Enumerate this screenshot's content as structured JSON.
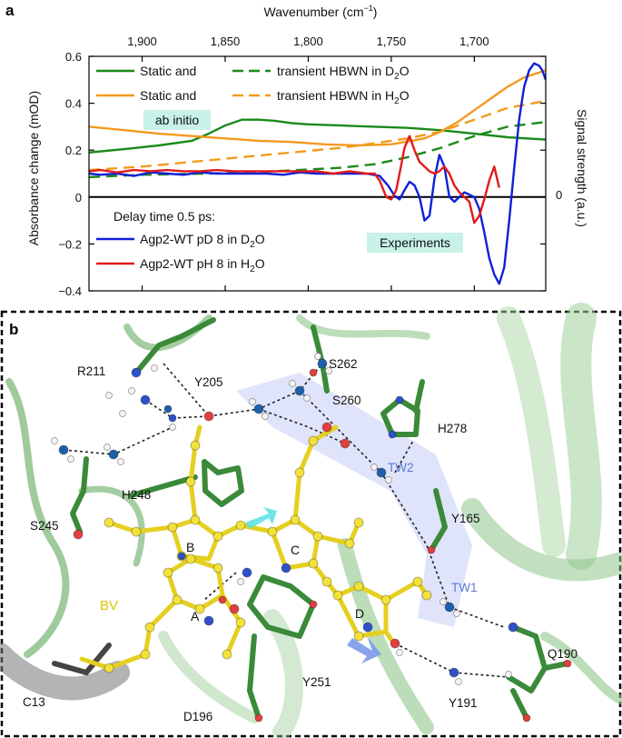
{
  "panel_a": {
    "letter": "a",
    "top_axis_label": "Wavenumber (cm",
    "top_axis_sup": "−1",
    "top_axis_close": ")",
    "y_left_label": "Absorbance change (mOD)",
    "y_right_label": "Signal strength (a.u.)",
    "right_zero_label": "0",
    "legend_top": [
      {
        "left": "Static and",
        "right": "transient HBWN in D",
        "sub": "2",
        "tail": "O",
        "color": "#1a8a1a"
      },
      {
        "left": "Static and",
        "right": "transient HBWN in H",
        "sub": "2",
        "tail": "O",
        "color": "#f39a1e"
      }
    ],
    "ab_initio_label": "ab initio",
    "experiments_label": "Experiments",
    "legend_bottom_title": "Delay time 0.5 ps:",
    "legend_bottom": [
      {
        "label": "Agp2-WT pD 8 in D",
        "sub": "2",
        "tail": "O",
        "color": "#1020d8"
      },
      {
        "label": "Agp2-WT pH 8 in H",
        "sub": "2",
        "tail": "O",
        "color": "#e41a1a"
      }
    ]
  },
  "chart_data": {
    "type": "line",
    "xlabel": "Wavenumber (cm−1)",
    "ylabel": "Absorbance change (mOD)",
    "y2label": "Signal strength (a.u.)",
    "xlim": [
      1932,
      1657
    ],
    "ylim": [
      -0.4,
      0.6
    ],
    "xticks": [
      1900,
      1850,
      1800,
      1750,
      1700
    ],
    "xtick_labels": [
      "1,900",
      "1,850",
      "1,800",
      "1,750",
      "1,700"
    ],
    "yticks": [
      -0.4,
      -0.2,
      0,
      0.2,
      0.4,
      0.6
    ],
    "ytick_labels": [
      "−0.4",
      "−0.2",
      "0",
      "0.2",
      "0.4",
      "0.6"
    ],
    "series": [
      {
        "name": "Static HBWN in D2O",
        "style": "solid",
        "color": "#1a8a1a",
        "x": [
          1932,
          1910,
          1890,
          1870,
          1860,
          1850,
          1840,
          1830,
          1820,
          1810,
          1800,
          1780,
          1760,
          1740,
          1720,
          1700,
          1680,
          1657
        ],
        "y": [
          0.19,
          0.205,
          0.22,
          0.24,
          0.27,
          0.305,
          0.33,
          0.33,
          0.325,
          0.315,
          0.31,
          0.305,
          0.3,
          0.295,
          0.285,
          0.27,
          0.255,
          0.245
        ]
      },
      {
        "name": "Transient HBWN in D2O",
        "style": "dashed",
        "color": "#1a8a1a",
        "x": [
          1932,
          1900,
          1860,
          1820,
          1780,
          1760,
          1740,
          1720,
          1700,
          1680,
          1657
        ],
        "y": [
          0.085,
          0.095,
          0.1,
          0.11,
          0.125,
          0.14,
          0.17,
          0.21,
          0.26,
          0.3,
          0.32
        ]
      },
      {
        "name": "Static HBWN in H2O",
        "style": "solid",
        "color": "#f39a1e",
        "x": [
          1932,
          1910,
          1890,
          1870,
          1850,
          1830,
          1810,
          1790,
          1770,
          1750,
          1730,
          1720,
          1710,
          1700,
          1690,
          1680,
          1670,
          1657
        ],
        "y": [
          0.3,
          0.285,
          0.27,
          0.26,
          0.25,
          0.24,
          0.235,
          0.225,
          0.22,
          0.225,
          0.25,
          0.28,
          0.32,
          0.37,
          0.42,
          0.47,
          0.51,
          0.54
        ]
      },
      {
        "name": "Transient HBWN in H2O",
        "style": "dashed",
        "color": "#f39a1e",
        "x": [
          1932,
          1900,
          1870,
          1840,
          1810,
          1780,
          1760,
          1740,
          1720,
          1700,
          1680,
          1657
        ],
        "y": [
          0.115,
          0.13,
          0.15,
          0.17,
          0.19,
          0.21,
          0.23,
          0.25,
          0.28,
          0.33,
          0.38,
          0.41
        ]
      },
      {
        "name": "Agp2-WT pD 8 in D2O",
        "style": "solid",
        "color": "#1020d8",
        "x": [
          1932,
          1925,
          1915,
          1905,
          1895,
          1885,
          1875,
          1865,
          1855,
          1845,
          1835,
          1825,
          1815,
          1805,
          1795,
          1785,
          1775,
          1765,
          1757,
          1752,
          1748,
          1745,
          1742,
          1739,
          1736,
          1733,
          1730,
          1727,
          1724,
          1721,
          1718,
          1715,
          1712,
          1709,
          1706,
          1703,
          1700,
          1697,
          1694,
          1691,
          1688,
          1685,
          1682,
          1679,
          1676,
          1673,
          1670,
          1667,
          1664,
          1661,
          1659,
          1657
        ],
        "y": [
          0.1,
          0.095,
          0.1,
          0.09,
          0.105,
          0.1,
          0.095,
          0.105,
          0.1,
          0.1,
          0.1,
          0.1,
          0.095,
          0.105,
          0.1,
          0.1,
          0.1,
          0.1,
          0.09,
          0.05,
          0.005,
          -0.01,
          0.03,
          0.065,
          0.05,
          0.0,
          -0.1,
          -0.08,
          0.08,
          0.18,
          0.13,
          0.0,
          -0.02,
          0.0,
          0.02,
          0.01,
          0.0,
          -0.05,
          -0.15,
          -0.26,
          -0.33,
          -0.37,
          -0.3,
          -0.1,
          0.12,
          0.33,
          0.47,
          0.54,
          0.57,
          0.56,
          0.54,
          0.5
        ]
      },
      {
        "name": "Agp2-WT pH 8 in H2O",
        "style": "solid",
        "color": "#e41a1a",
        "x": [
          1932,
          1925,
          1915,
          1905,
          1895,
          1885,
          1875,
          1865,
          1855,
          1845,
          1835,
          1825,
          1815,
          1805,
          1795,
          1785,
          1775,
          1765,
          1760,
          1757,
          1753,
          1750,
          1747,
          1745,
          1742,
          1739,
          1736,
          1733,
          1730,
          1727,
          1724,
          1721,
          1718,
          1715,
          1712,
          1709,
          1706,
          1703,
          1700,
          1697,
          1694,
          1691,
          1688,
          1685
        ],
        "y": [
          0.11,
          0.115,
          0.105,
          0.115,
          0.11,
          0.115,
          0.11,
          0.11,
          0.115,
          0.11,
          0.11,
          0.11,
          0.11,
          0.11,
          0.11,
          0.1,
          0.11,
          0.1,
          0.1,
          0.07,
          0.0,
          -0.01,
          0.03,
          0.1,
          0.21,
          0.26,
          0.2,
          0.15,
          0.13,
          0.11,
          0.1,
          0.11,
          0.13,
          0.1,
          0.05,
          0.02,
          0.0,
          -0.02,
          -0.11,
          -0.08,
          -0.01,
          0.07,
          0.13,
          0.04
        ]
      }
    ]
  },
  "panel_b": {
    "letter": "b",
    "residue_labels": [
      "R211",
      "Y205",
      "S262",
      "S260",
      "H278",
      "S245",
      "H248",
      "Y165",
      "TW2",
      "TW1",
      "Q190",
      "Y191",
      "Y251",
      "D196",
      "C13",
      "BV"
    ],
    "ring_labels": [
      "A",
      "B",
      "C",
      "D"
    ],
    "colors": {
      "chromophore": "#f2e13a",
      "protein": "#4a9a4a",
      "water": "#1f5fa8",
      "oxygen": "#e04040",
      "nitrogen": "#3050c8",
      "waterwire": "#7a8ee0"
    }
  }
}
